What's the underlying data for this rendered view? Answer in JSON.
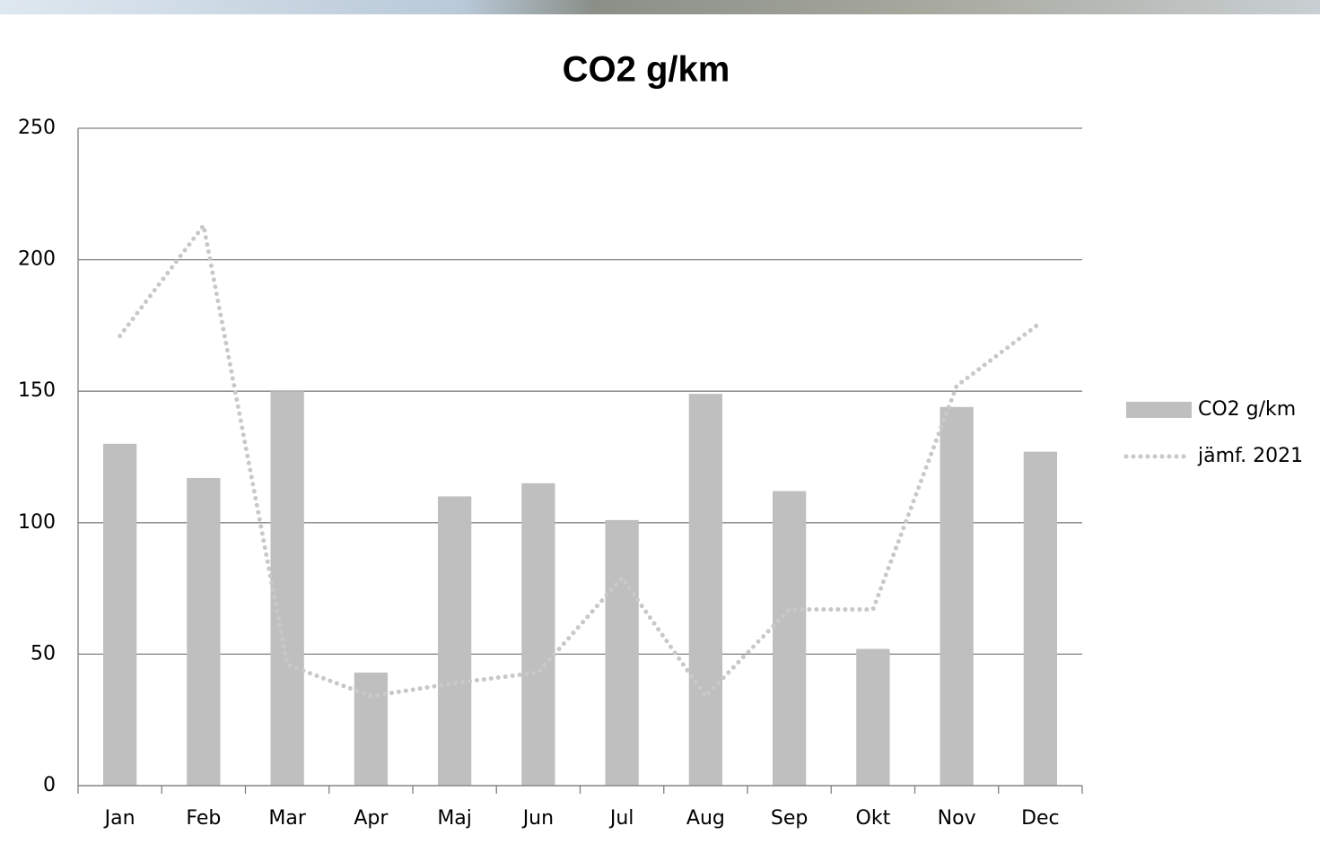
{
  "chart_data": {
    "type": "bar",
    "title": "CO2 g/km",
    "categories": [
      "Jan",
      "Feb",
      "Mar",
      "Apr",
      "Maj",
      "Jun",
      "Jul",
      "Aug",
      "Sep",
      "Okt",
      "Nov",
      "Dec"
    ],
    "series": [
      {
        "name": "CO2 g/km",
        "type": "bar",
        "color": "#bfbfbf",
        "values": [
          130,
          117,
          150,
          43,
          110,
          115,
          101,
          149,
          112,
          52,
          144,
          127
        ]
      },
      {
        "name": "jämf. 2021",
        "type": "line",
        "color": "#c8c8c8",
        "values": [
          171,
          213,
          46,
          34,
          39,
          43,
          79,
          34,
          67,
          67,
          152,
          176
        ]
      }
    ],
    "ylim": [
      0,
      250
    ],
    "yticks": [
      0,
      50,
      100,
      150,
      200,
      250
    ],
    "grid": true,
    "legend": "right"
  }
}
